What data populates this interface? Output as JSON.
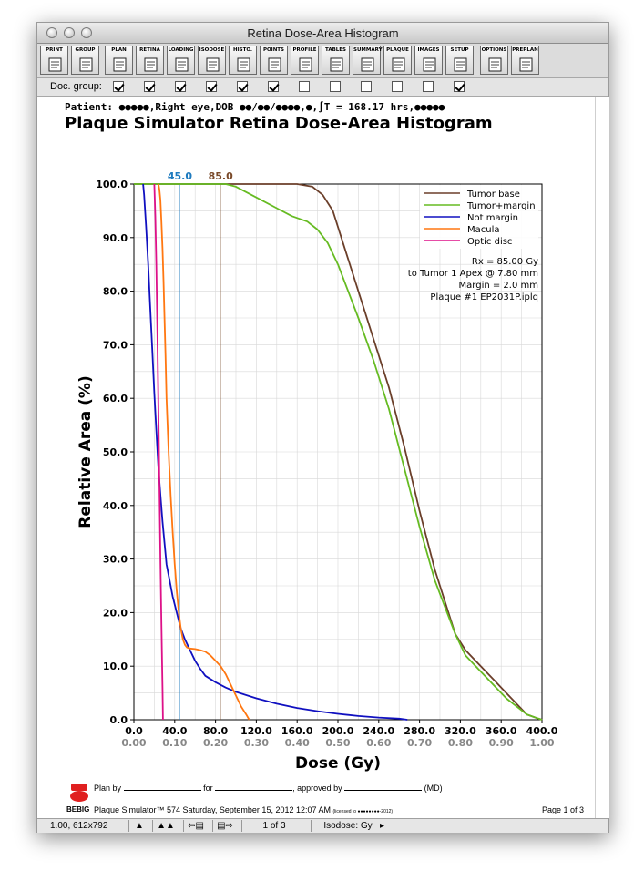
{
  "window": {
    "title": "Retina Dose-Area Histogram"
  },
  "toolbar": {
    "buttons": [
      {
        "label": "PRINT",
        "icon": "printer-icon"
      },
      {
        "label": "GROUP",
        "icon": "printer-group-icon"
      },
      {
        "label": "PLAN",
        "icon": "plan-doc-icon"
      },
      {
        "label": "RETINA",
        "icon": "retina-doc-icon"
      },
      {
        "label": "LOADING",
        "icon": "loading-doc-icon"
      },
      {
        "label": "ISODOSE",
        "icon": "isodose-doc-icon"
      },
      {
        "label": "HISTO.",
        "icon": "histogram-doc-icon"
      },
      {
        "label": "POINTS",
        "icon": "points-doc-icon"
      },
      {
        "label": "PROFILE",
        "icon": "profile-doc-icon"
      },
      {
        "label": "TABLES",
        "icon": "tables-doc-icon"
      },
      {
        "label": "SUMMARY",
        "icon": "summary-doc-icon"
      },
      {
        "label": "PLAQUE",
        "icon": "plaque-doc-icon"
      },
      {
        "label": "IMAGES",
        "icon": "images-doc-icon"
      },
      {
        "label": "SETUP",
        "icon": "setup-doc-icon"
      },
      {
        "label": "OPTIONS",
        "icon": "options-doc-icon"
      },
      {
        "label": "PREPLAN",
        "icon": "preplan-doc-icon"
      }
    ]
  },
  "doc_group": {
    "label": "Doc. group:",
    "checks": [
      true,
      true,
      true,
      true,
      true,
      true,
      false,
      false,
      false,
      false,
      false,
      true
    ]
  },
  "page": {
    "patient": "Patient: ●●●●●,Right eye,DOB ●●/●●/●●●●,●,∫T = 168.17 hrs,●●●●●",
    "title": "Plaque Simulator Retina Dose-Area Histogram"
  },
  "chart_data": {
    "type": "line",
    "xlabel": "Dose (Gy)",
    "ylabel": "Relative Area (%)",
    "xlim": [
      0,
      400
    ],
    "ylim": [
      0,
      100
    ],
    "x_ticks": [
      "0.0",
      "40.0",
      "80.0",
      "120.0",
      "160.0",
      "200.0",
      "240.0",
      "280.0",
      "320.0",
      "360.0",
      "400.0"
    ],
    "x_ticks_secondary": [
      "0.00",
      "0.10",
      "0.20",
      "0.30",
      "0.40",
      "0.50",
      "0.60",
      "0.70",
      "0.80",
      "0.90",
      "1.00"
    ],
    "y_ticks": [
      "0.0",
      "10.0",
      "20.0",
      "30.0",
      "40.0",
      "50.0",
      "60.0",
      "70.0",
      "80.0",
      "90.0",
      "100.0"
    ],
    "markers": [
      {
        "label": "45.0",
        "x": 45,
        "color": "#1f7bbf"
      },
      {
        "label": "85.0",
        "x": 85,
        "color": "#7a4a2a"
      }
    ],
    "legend_position": "top-right",
    "info": [
      "Rx = 85.00 Gy",
      "to Tumor 1 Apex @ 7.80 mm",
      "Margin = 2.0 mm",
      "Plaque #1 EP2031P.iplq"
    ],
    "series": [
      {
        "name": "Tumor base",
        "color": "#6b3f2a",
        "x": [
          0,
          160,
          175,
          185,
          195,
          205,
          215,
          225,
          235,
          250,
          265,
          280,
          295,
          305,
          315,
          325,
          340,
          355,
          365,
          375,
          385,
          395,
          400
        ],
        "y": [
          100,
          100,
          99.5,
          98,
          95,
          89,
          83,
          77,
          71,
          62,
          51,
          39,
          28,
          22,
          16,
          13,
          10,
          7,
          5,
          3,
          1,
          0.3,
          0
        ]
      },
      {
        "name": "Tumor+margin",
        "color": "#66bb22",
        "x": [
          0,
          85,
          90,
          100,
          120,
          140,
          155,
          170,
          180,
          190,
          200,
          210,
          220,
          235,
          250,
          265,
          280,
          295,
          305,
          315,
          325,
          340,
          355,
          365,
          375,
          385,
          395,
          400
        ],
        "y": [
          100,
          100,
          100,
          99.5,
          97.5,
          95.5,
          94,
          93,
          91.5,
          89,
          85,
          80,
          75,
          67,
          58,
          47,
          36,
          26,
          21,
          16,
          12,
          9,
          6,
          4,
          2.5,
          1,
          0.3,
          0
        ]
      },
      {
        "name": "Not margin",
        "color": "#1010c0",
        "x": [
          9,
          10,
          12,
          14,
          16,
          18,
          20,
          22,
          24,
          26,
          28,
          30,
          32,
          35,
          38,
          42,
          46,
          50,
          55,
          60,
          65,
          70,
          80,
          90,
          100,
          120,
          140,
          160,
          180,
          200,
          220,
          240,
          260,
          268
        ],
        "y": [
          100,
          98,
          92,
          85,
          77,
          69,
          61,
          54,
          47,
          42,
          37,
          33,
          29,
          26,
          23,
          20,
          17,
          15,
          13,
          11,
          9.5,
          8.2,
          7,
          6,
          5.2,
          4,
          3,
          2.2,
          1.6,
          1.1,
          0.7,
          0.4,
          0.2,
          0
        ]
      },
      {
        "name": "Macula",
        "color": "#ff7711",
        "x": [
          24,
          25,
          26,
          27,
          28,
          29,
          30,
          31,
          32,
          34,
          36,
          38,
          40,
          42,
          44,
          46,
          48,
          50,
          52,
          55,
          60,
          65,
          70,
          75,
          80,
          85,
          90,
          95,
          100,
          105,
          110,
          113
        ],
        "y": [
          100,
          99,
          97,
          93,
          88,
          82,
          75,
          68,
          60,
          50,
          42,
          35,
          29,
          24,
          20,
          17,
          15,
          14,
          13.5,
          13.3,
          13.2,
          13,
          12.7,
          12,
          11,
          10,
          8.5,
          6.5,
          4.5,
          2.5,
          1,
          0
        ]
      },
      {
        "name": "Optic disc",
        "color": "#dd1188",
        "x": [
          20,
          21,
          22,
          23,
          24,
          25,
          26,
          27,
          28,
          28.5
        ],
        "y": [
          100,
          94,
          85,
          72,
          58,
          44,
          30,
          18,
          6,
          0
        ]
      }
    ]
  },
  "footer": {
    "plan_by": "Plan by",
    "for": "for",
    "approved_by": ", approved by",
    "md": "(MD)",
    "logo": "BEBIG",
    "line2": "Plaque Simulator™ 574 Saturday, September 15, 2012 12:07 AM",
    "license": "(licensed to ●●●●●●●●-2012)",
    "page": "Page 1  of 3"
  },
  "statusbar": {
    "scale": "1.00, 612x792",
    "page_of": "1   of  3",
    "isodose": "Isodose: Gy"
  }
}
